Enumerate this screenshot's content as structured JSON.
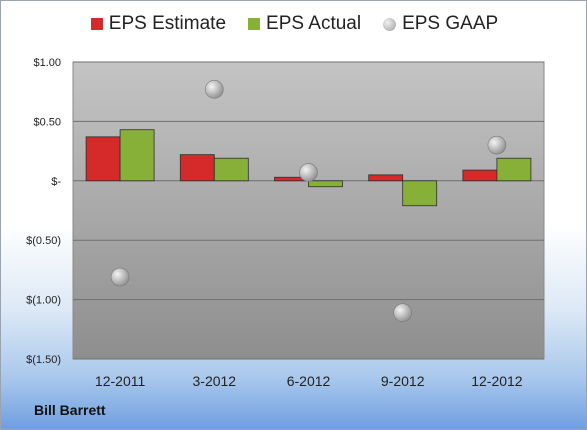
{
  "company_label": "Bill Barrett",
  "chart_data": {
    "type": "bar",
    "categories": [
      "12-2011",
      "3-2012",
      "6-2012",
      "9-2012",
      "12-2012"
    ],
    "series": [
      {
        "name": "EPS Estimate",
        "type": "bar",
        "color": "#d42a2a",
        "values": [
          0.37,
          0.22,
          0.03,
          0.05,
          0.09
        ]
      },
      {
        "name": "EPS Actual",
        "type": "bar",
        "color": "#86b038",
        "values": [
          0.43,
          0.19,
          -0.05,
          -0.21,
          0.19
        ]
      },
      {
        "name": "EPS GAAP",
        "type": "scatter",
        "color": "#b4b4b4",
        "values": [
          -0.81,
          0.77,
          0.07,
          -1.11,
          0.3
        ]
      }
    ],
    "yticks": [
      {
        "value": 1.0,
        "label": "$1.00"
      },
      {
        "value": 0.5,
        "label": "$0.50"
      },
      {
        "value": 0.0,
        "label": "$-"
      },
      {
        "value": -0.5,
        "label": "$(0.50)"
      },
      {
        "value": -1.0,
        "label": "$(1.00)"
      },
      {
        "value": -1.5,
        "label": "$(1.50)"
      }
    ],
    "ylim": [
      -1.5,
      1.0
    ],
    "grid": true,
    "legend_position": "top-center"
  }
}
